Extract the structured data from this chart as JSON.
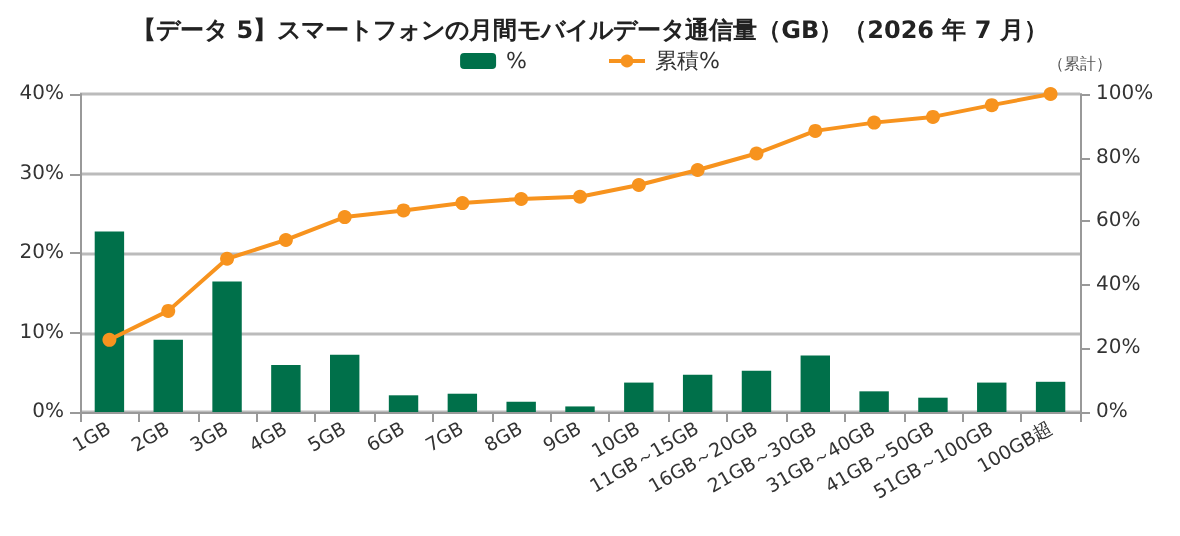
{
  "chart_data": {
    "type": "bar",
    "title": "【データ 5】スマートフォンの月間モバイルデータ通信量（GB）（2026 年 7 月）",
    "y2label": "（累計）",
    "categories": [
      "1GB",
      "2GB",
      "3GB",
      "4GB",
      "5GB",
      "6GB",
      "7GB",
      "8GB",
      "9GB",
      "10GB",
      "11GB～15GB",
      "16GB～20GB",
      "21GB～30GB",
      "31GB～40GB",
      "41GB～50GB",
      "51GB～100GB",
      "100GB超"
    ],
    "series": [
      {
        "name": "%",
        "color": "#00704a",
        "values": [
          22.7,
          9.1,
          16.4,
          5.9,
          7.2,
          2.1,
          2.3,
          1.3,
          0.7,
          3.7,
          4.7,
          5.2,
          7.1,
          2.6,
          1.8,
          3.7,
          3.8
        ]
      },
      {
        "name": "累積%",
        "type": "line",
        "axis": "y2",
        "color": "#f7931e",
        "marker": "circle",
        "values": [
          22.7,
          31.8,
          48.2,
          54.1,
          61.3,
          63.4,
          65.7,
          67.0,
          67.7,
          71.4,
          76.1,
          81.3,
          88.4,
          91.0,
          92.8,
          96.5,
          100
        ]
      }
    ],
    "ylim": [
      0,
      40
    ],
    "yticks": [
      {
        "value": 0,
        "label": "0%"
      },
      {
        "value": 10,
        "label": "10%"
      },
      {
        "value": 20,
        "label": "20%"
      },
      {
        "value": 30,
        "label": "30%"
      },
      {
        "value": 40,
        "label": "40%"
      }
    ],
    "y2lim": [
      0,
      100
    ],
    "y2ticks": [
      {
        "value": 0,
        "label": "0%"
      },
      {
        "value": 20,
        "label": "20%"
      },
      {
        "value": 40,
        "label": "40%"
      },
      {
        "value": 60,
        "label": "60%"
      },
      {
        "value": 80,
        "label": "80%"
      },
      {
        "value": 100,
        "label": "100%"
      }
    ],
    "grid": "y",
    "legend": "top"
  }
}
